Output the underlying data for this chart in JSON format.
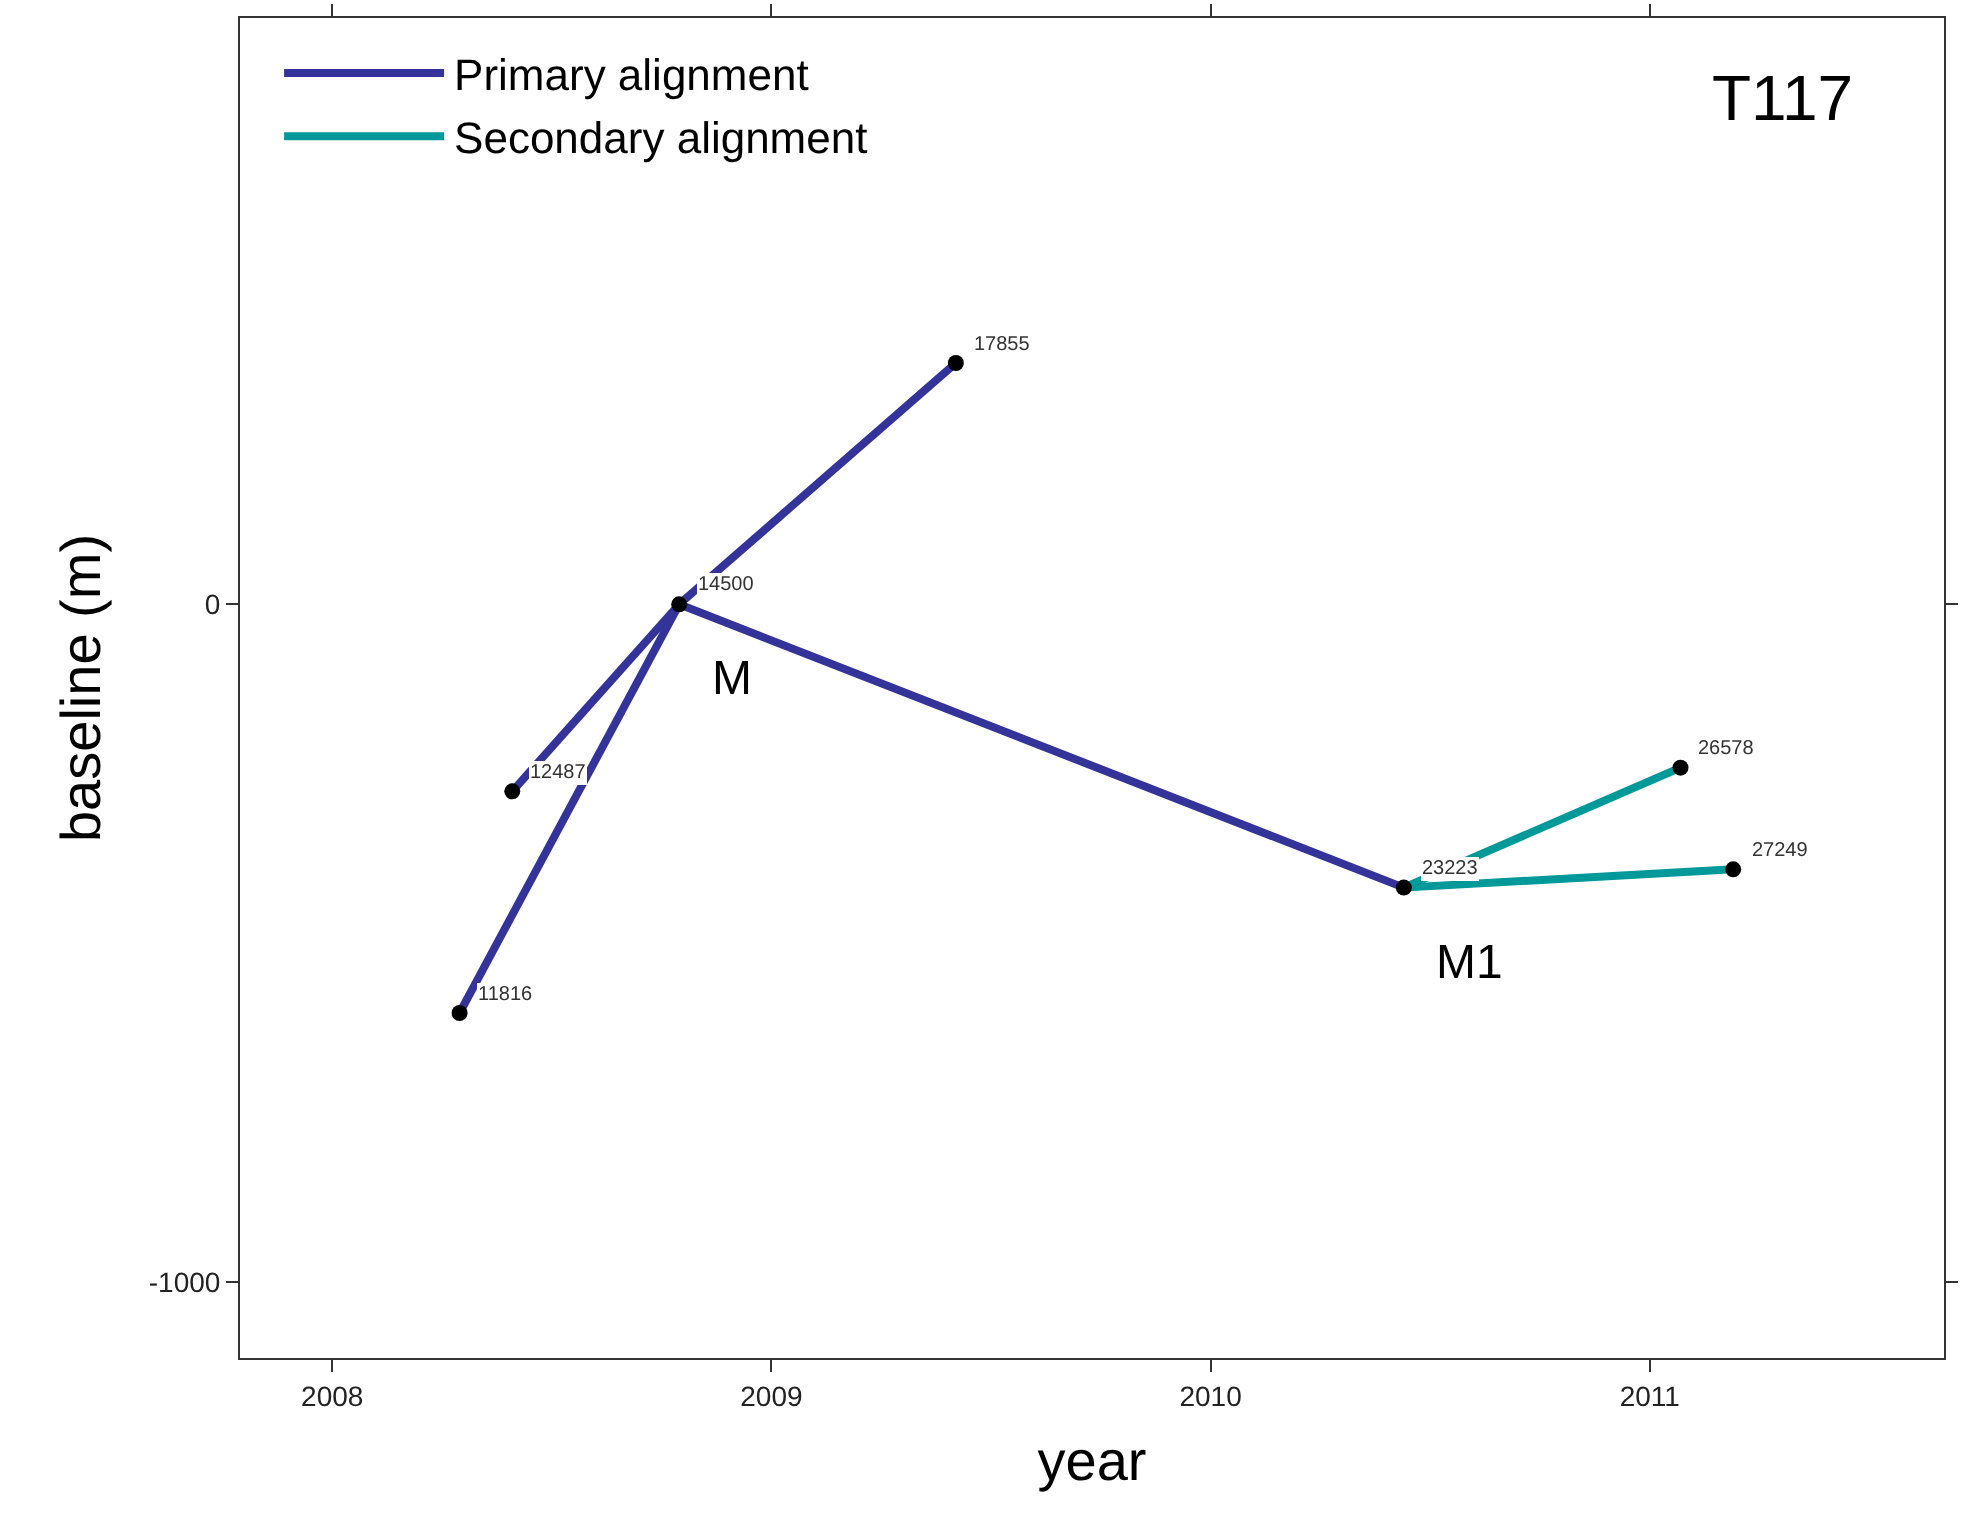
{
  "chart_data": {
    "type": "scatter",
    "xlabel": "year",
    "ylabel": "baseline (m)",
    "xlim": [
      2007.79,
      2011.67
    ],
    "xticks": [
      2008,
      2009,
      2010,
      2011
    ],
    "ylim": [
      -1112,
      865
    ],
    "yticks": [
      0,
      -1000
    ],
    "legend": "top left",
    "series": [
      {
        "name": "Primary alignment",
        "type": "line",
        "marker": "none",
        "color": "#333399",
        "x": [
          2008.79,
          2009.42
        ],
        "values": [
          0,
          356
        ]
      },
      {
        "type": "line",
        "marker": "none",
        "color": "#333399",
        "x": [
          2008.79,
          2008.41
        ],
        "values": [
          0,
          -276
        ]
      },
      {
        "type": "line",
        "marker": "none",
        "color": "#333399",
        "x": [
          2008.79,
          2008.29
        ],
        "values": [
          0,
          -603
        ]
      },
      {
        "type": "line",
        "marker": "none",
        "color": "#333399",
        "x": [
          2008.79,
          2010.44
        ],
        "values": [
          0,
          -418
        ]
      },
      {
        "name": "Secondary alignment",
        "type": "line",
        "marker": "none",
        "color": "#009999",
        "x": [
          2010.44,
          2011.07
        ],
        "values": [
          -418,
          -241
        ]
      },
      {
        "type": "line",
        "marker": "none",
        "color": "#009999",
        "x": [
          2010.44,
          2011.19
        ],
        "values": [
          -418,
          -391
        ]
      },
      {
        "color": "#000000",
        "marker": "circle",
        "x": [
          2009.42,
          2008.79,
          2008.41,
          2008.29,
          2010.44,
          2011.07,
          2011.19
        ],
        "values": [
          356,
          0,
          -276,
          -603,
          -418,
          -241,
          -391
        ]
      }
    ],
    "annotations": [
      {
        "text": "17855",
        "x": 2009.42,
        "y": 356
      },
      {
        "text": "14500",
        "x": 2008.79,
        "y": 0
      },
      {
        "text": "12487",
        "x": 2008.41,
        "y": -276
      },
      {
        "text": "11816",
        "x": 2008.29,
        "y": -603
      },
      {
        "text": "23223",
        "x": 2010.44,
        "y": -418
      },
      {
        "text": "26578",
        "x": 2011.07,
        "y": -241
      },
      {
        "text": "27249",
        "x": 2011.19,
        "y": -391
      },
      {
        "text": "M",
        "x": 2008.79,
        "y": 0
      },
      {
        "text": "M1",
        "x": 2010.44,
        "y": -418
      },
      "T117"
    ]
  }
}
